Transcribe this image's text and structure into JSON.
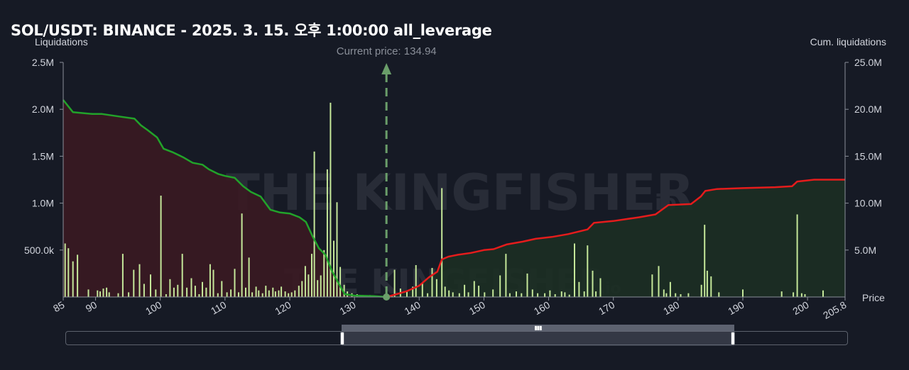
{
  "title": "SOL/USDT: BINANCE - 2025. 3. 15. 오후 1:00:00 all_leverage",
  "left_axis_label": "Liquidations",
  "right_axis_label": "Cum. liquidations",
  "x_axis_label": "Price",
  "current_price_label": "Current price: 134.94",
  "watermark": {
    "text": "THE KINGFISHER",
    "suffix": "io"
  },
  "colors": {
    "background": "#161a25",
    "bars": "#c5e89a",
    "cum_short": "#22a32a",
    "cum_long": "#e51c1c",
    "short_fill": "#3a1a22",
    "long_fill": "#1c2f24",
    "current_price": "#6a9e6a"
  },
  "zoom_slider": {
    "start": 0.355,
    "end": 0.855
  },
  "chart_data": {
    "type": "bar",
    "title": "SOL/USDT: BINANCE - 2025. 3. 15. 오후 1:00:00 all_leverage",
    "xlabel": "Price",
    "ylabel": "Liquidations",
    "y2label": "Cum. liquidations",
    "xlim": [
      85,
      205.8
    ],
    "ylim": [
      0,
      2500000
    ],
    "y2lim": [
      0,
      25000000
    ],
    "x_ticks": [
      "85",
      "90",
      "100",
      "110",
      "120",
      "130",
      "140",
      "150",
      "160",
      "170",
      "180",
      "190",
      "200",
      "205.8"
    ],
    "x_tick_values": [
      85,
      90,
      100,
      110,
      120,
      130,
      140,
      150,
      160,
      170,
      180,
      190,
      200,
      205.8
    ],
    "y_ticks": [
      "500.0k",
      "1.0M",
      "1.5M",
      "2.0M",
      "2.5M"
    ],
    "y_tick_values": [
      500000,
      1000000,
      1500000,
      2000000,
      2500000
    ],
    "y2_ticks": [
      "5.0M",
      "10.0M",
      "15.0M",
      "20.0M",
      "25.0M"
    ],
    "y2_tick_values": [
      5000000,
      10000000,
      15000000,
      20000000,
      25000000
    ],
    "current_price": 134.94,
    "bars": [
      [
        85.3,
        570000
      ],
      [
        85.8,
        520000
      ],
      [
        86.5,
        380000
      ],
      [
        87.2,
        450000
      ],
      [
        88.9,
        80000
      ],
      [
        90.3,
        70000
      ],
      [
        90.7,
        60000
      ],
      [
        91.2,
        90000
      ],
      [
        91.7,
        100000
      ],
      [
        92.1,
        50000
      ],
      [
        93.5,
        40000
      ],
      [
        94.2,
        460000
      ],
      [
        95.1,
        50000
      ],
      [
        95.9,
        290000
      ],
      [
        96.8,
        350000
      ],
      [
        97.5,
        140000
      ],
      [
        98.5,
        240000
      ],
      [
        99.3,
        80000
      ],
      [
        100.1,
        1080000
      ],
      [
        100.9,
        30000
      ],
      [
        101.5,
        190000
      ],
      [
        102.1,
        100000
      ],
      [
        102.7,
        130000
      ],
      [
        103.4,
        460000
      ],
      [
        104.1,
        100000
      ],
      [
        104.8,
        200000
      ],
      [
        105.4,
        120000
      ],
      [
        106.0,
        30000
      ],
      [
        106.5,
        160000
      ],
      [
        107.1,
        100000
      ],
      [
        107.7,
        350000
      ],
      [
        108.2,
        290000
      ],
      [
        108.9,
        40000
      ],
      [
        109.5,
        170000
      ],
      [
        110.3,
        50000
      ],
      [
        110.9,
        80000
      ],
      [
        111.5,
        300000
      ],
      [
        112.1,
        50000
      ],
      [
        112.6,
        890000
      ],
      [
        113.2,
        100000
      ],
      [
        113.7,
        420000
      ],
      [
        114.2,
        50000
      ],
      [
        114.8,
        110000
      ],
      [
        115.2,
        70000
      ],
      [
        115.8,
        40000
      ],
      [
        116.3,
        120000
      ],
      [
        116.8,
        70000
      ],
      [
        117.4,
        100000
      ],
      [
        117.8,
        60000
      ],
      [
        118.3,
        70000
      ],
      [
        118.7,
        110000
      ],
      [
        119.3,
        60000
      ],
      [
        119.8,
        40000
      ],
      [
        120.3,
        50000
      ],
      [
        120.8,
        70000
      ],
      [
        121.4,
        120000
      ],
      [
        121.9,
        170000
      ],
      [
        122.4,
        330000
      ],
      [
        122.9,
        240000
      ],
      [
        123.4,
        460000
      ],
      [
        123.8,
        1550000
      ],
      [
        124.3,
        180000
      ],
      [
        124.8,
        230000
      ],
      [
        125.3,
        500000
      ],
      [
        125.8,
        1360000
      ],
      [
        126.3,
        2070000
      ],
      [
        126.8,
        600000
      ],
      [
        127.3,
        1010000
      ],
      [
        127.8,
        320000
      ],
      [
        128.4,
        130000
      ],
      [
        128.9,
        60000
      ],
      [
        129.6,
        40000
      ],
      [
        130.4,
        30000
      ],
      [
        131.3,
        20000
      ],
      [
        132.4,
        20000
      ],
      [
        133.5,
        15000
      ],
      [
        135.8,
        15000
      ],
      [
        136.2,
        290000
      ],
      [
        137.1,
        90000
      ],
      [
        138.1,
        60000
      ],
      [
        139.0,
        110000
      ],
      [
        139.5,
        340000
      ],
      [
        140.5,
        150000
      ],
      [
        141.3,
        40000
      ],
      [
        142.0,
        310000
      ],
      [
        142.7,
        190000
      ],
      [
        143.5,
        1160000
      ],
      [
        144.0,
        110000
      ],
      [
        144.6,
        70000
      ],
      [
        145.2,
        50000
      ],
      [
        146.2,
        40000
      ],
      [
        147.0,
        130000
      ],
      [
        147.6,
        50000
      ],
      [
        148.5,
        170000
      ],
      [
        149.2,
        120000
      ],
      [
        150.1,
        50000
      ],
      [
        151.4,
        80000
      ],
      [
        152.5,
        230000
      ],
      [
        153.4,
        460000
      ],
      [
        154.0,
        40000
      ],
      [
        155.0,
        60000
      ],
      [
        155.8,
        40000
      ],
      [
        156.7,
        250000
      ],
      [
        157.5,
        80000
      ],
      [
        158.3,
        40000
      ],
      [
        159.4,
        40000
      ],
      [
        160.2,
        70000
      ],
      [
        161.0,
        30000
      ],
      [
        162.0,
        60000
      ],
      [
        162.5,
        50000
      ],
      [
        163.2,
        25000
      ],
      [
        164.0,
        570000
      ],
      [
        164.7,
        160000
      ],
      [
        165.5,
        60000
      ],
      [
        166.0,
        550000
      ],
      [
        166.8,
        280000
      ],
      [
        167.3,
        60000
      ],
      [
        168.0,
        200000
      ],
      [
        176.0,
        240000
      ],
      [
        177.0,
        330000
      ],
      [
        177.8,
        80000
      ],
      [
        178.2,
        40000
      ],
      [
        178.8,
        160000
      ],
      [
        179.6,
        40000
      ],
      [
        180.4,
        30000
      ],
      [
        181.6,
        40000
      ],
      [
        183.6,
        130000
      ],
      [
        184.1,
        770000
      ],
      [
        184.5,
        280000
      ],
      [
        185.1,
        220000
      ],
      [
        186.3,
        50000
      ],
      [
        190.0,
        80000
      ],
      [
        196.0,
        60000
      ],
      [
        197.8,
        50000
      ],
      [
        198.4,
        880000
      ],
      [
        199.1,
        40000
      ],
      [
        199.6,
        30000
      ],
      [
        202.4,
        70000
      ]
    ],
    "cum_short": [
      [
        85,
        21000000
      ],
      [
        86.5,
        19700000
      ],
      [
        89.5,
        19500000
      ],
      [
        91,
        19500000
      ],
      [
        94,
        19200000
      ],
      [
        96,
        19000000
      ],
      [
        97,
        18300000
      ],
      [
        98,
        17800000
      ],
      [
        99.5,
        17000000
      ],
      [
        100.5,
        15800000
      ],
      [
        102,
        15400000
      ],
      [
        103.5,
        14900000
      ],
      [
        105,
        14300000
      ],
      [
        106.5,
        14100000
      ],
      [
        107.5,
        13600000
      ],
      [
        109,
        13100000
      ],
      [
        110,
        12900000
      ],
      [
        111.5,
        12700000
      ],
      [
        112.8,
        11800000
      ],
      [
        114,
        11200000
      ],
      [
        115.5,
        10700000
      ],
      [
        117,
        9300000
      ],
      [
        118.5,
        9000000
      ],
      [
        120,
        8900000
      ],
      [
        121.5,
        8500000
      ],
      [
        122.5,
        8000000
      ],
      [
        123.5,
        6500000
      ],
      [
        124.5,
        5200000
      ],
      [
        125.5,
        4500000
      ],
      [
        126.5,
        2800000
      ],
      [
        127.5,
        1500000
      ],
      [
        128.5,
        300000
      ],
      [
        130,
        150000
      ],
      [
        133,
        100000
      ],
      [
        134.94,
        0
      ]
    ],
    "cum_long": [
      [
        134.94,
        0
      ],
      [
        136.5,
        300000
      ],
      [
        138,
        600000
      ],
      [
        140,
        1200000
      ],
      [
        141.5,
        2100000
      ],
      [
        142.8,
        2700000
      ],
      [
        143.5,
        4000000
      ],
      [
        144.5,
        4300000
      ],
      [
        146,
        4500000
      ],
      [
        148,
        4700000
      ],
      [
        150,
        5000000
      ],
      [
        151.5,
        5100000
      ],
      [
        153.5,
        5600000
      ],
      [
        156,
        5900000
      ],
      [
        158,
        6200000
      ],
      [
        160.5,
        6400000
      ],
      [
        163,
        6700000
      ],
      [
        166,
        7200000
      ],
      [
        167,
        7900000
      ],
      [
        170,
        8100000
      ],
      [
        172,
        8300000
      ],
      [
        174,
        8500000
      ],
      [
        176.5,
        8800000
      ],
      [
        178.5,
        9800000
      ],
      [
        182,
        9900000
      ],
      [
        183.5,
        10700000
      ],
      [
        184.2,
        11300000
      ],
      [
        186,
        11500000
      ],
      [
        190,
        11600000
      ],
      [
        195,
        11700000
      ],
      [
        197.6,
        11800000
      ],
      [
        198.4,
        12300000
      ],
      [
        201,
        12500000
      ],
      [
        205.8,
        12500000
      ]
    ]
  }
}
